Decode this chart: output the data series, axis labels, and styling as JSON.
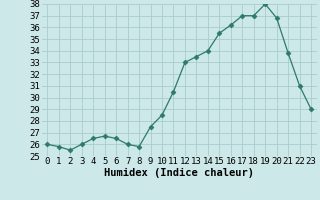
{
  "x": [
    0,
    1,
    2,
    3,
    4,
    5,
    6,
    7,
    8,
    9,
    10,
    11,
    12,
    13,
    14,
    15,
    16,
    17,
    18,
    19,
    20,
    21,
    22,
    23
  ],
  "y": [
    26.0,
    25.8,
    25.5,
    26.0,
    26.5,
    26.7,
    26.5,
    26.0,
    25.8,
    27.5,
    28.5,
    30.5,
    33.0,
    33.5,
    34.0,
    35.5,
    36.2,
    37.0,
    37.0,
    38.0,
    36.8,
    33.8,
    31.0,
    29.0
  ],
  "xlabel": "Humidex (Indice chaleur)",
  "ylim": [
    25,
    38
  ],
  "yticks": [
    25,
    26,
    27,
    28,
    29,
    30,
    31,
    32,
    33,
    34,
    35,
    36,
    37,
    38
  ],
  "line_color": "#2d7a6a",
  "marker": "D",
  "marker_size": 2.5,
  "bg_color": "#cde8e8",
  "grid_color": "#aacccc",
  "label_fontsize": 7.5,
  "tick_fontsize": 6.5
}
